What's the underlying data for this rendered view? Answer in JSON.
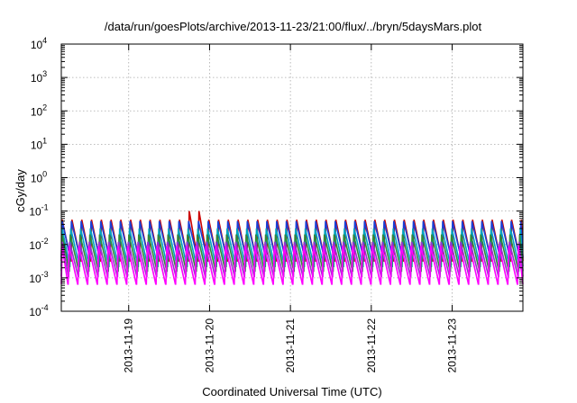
{
  "chart_data": {
    "type": "line",
    "title": "/data/run/goesPlots/archive/2013-11-23/21:00/flux/../bryn/5daysMars.plot",
    "xlabel": "Coordinated Universal Time (UTC)",
    "ylabel": "cGy/day",
    "yscale": "log",
    "ylim": [
      0.0001,
      10000
    ],
    "xlim": [
      "2013-11-18 04:00",
      "2013-11-23 21:00"
    ],
    "x_ticks": [
      "2013-11-19",
      "2013-11-20",
      "2013-11-21",
      "2013-11-22",
      "2013-11-23"
    ],
    "y_ticks": [
      {
        "base": "10",
        "exp": "-4"
      },
      {
        "base": "10",
        "exp": "-3"
      },
      {
        "base": "10",
        "exp": "-2"
      },
      {
        "base": "10",
        "exp": "-1"
      },
      {
        "base": "10",
        "exp": "0"
      },
      {
        "base": "10",
        "exp": "1"
      },
      {
        "base": "10",
        "exp": "2"
      },
      {
        "base": "10",
        "exp": "3"
      },
      {
        "base": "10",
        "exp": "4"
      }
    ],
    "grid": true,
    "legend": "none",
    "sawtooth_period_hours": 2.9,
    "series": [
      {
        "color": "#cc0000",
        "peak": 0.055,
        "trough": 0.0032
      },
      {
        "color": "#1a3fd6",
        "peak": 0.05,
        "trough": 0.004
      },
      {
        "color": "#00a3c0",
        "peak": 0.03,
        "trough": 0.0022
      },
      {
        "color": "#2e8b3a",
        "peak": 0.02,
        "trough": 0.0016
      },
      {
        "color": "#9933cc",
        "peak": 0.012,
        "trough": 0.0011
      },
      {
        "color": "#ff00ff",
        "peak": 0.009,
        "trough": 0.00065
      }
    ],
    "notable_peaks": [
      {
        "x": "2013-11-19 18:00",
        "y": 0.1
      },
      {
        "x": "2013-11-19 21:00",
        "y": 0.1
      }
    ]
  }
}
